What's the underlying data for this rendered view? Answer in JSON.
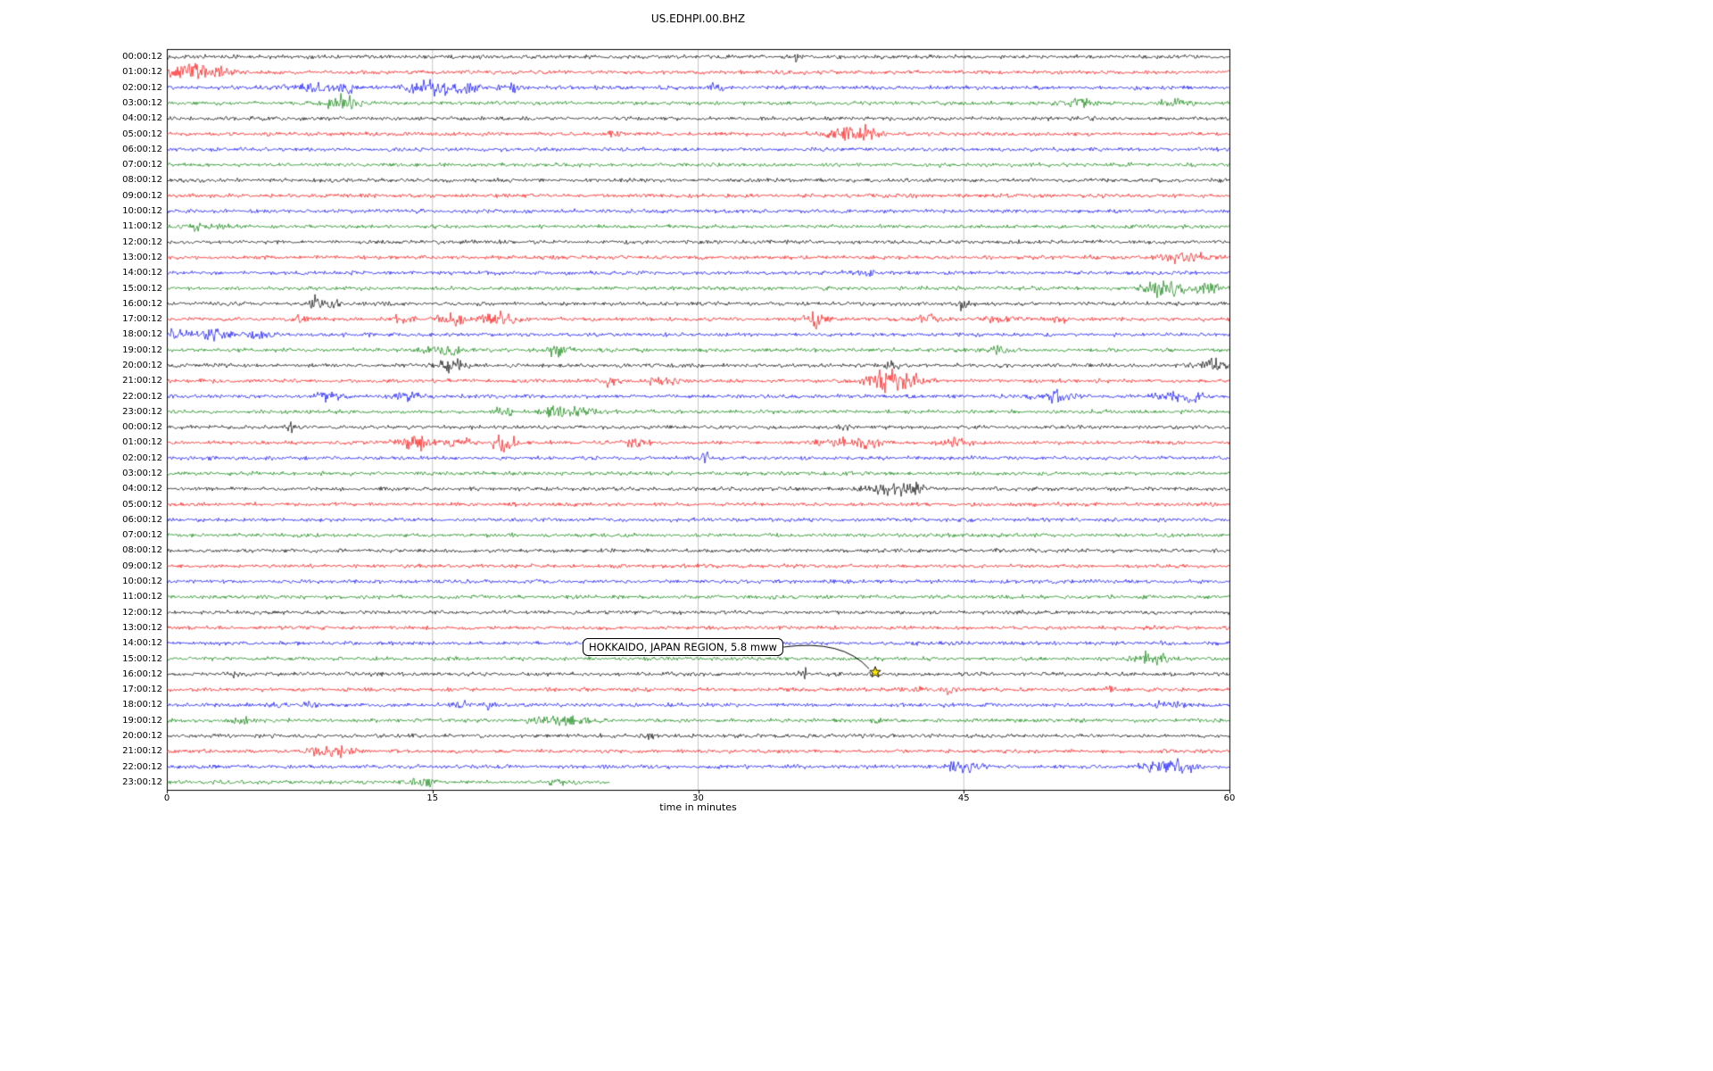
{
  "title": "US.EDHPI.00.BHZ",
  "xlabel": "time in minutes",
  "annotation": {
    "text": "HOKKAIDO, JAPAN REGION, 5.8 mww",
    "row_index": 40,
    "minute": 40,
    "marker": "star",
    "marker_color": "#ffe600"
  },
  "chart_data": {
    "type": "line",
    "title": "US.EDHPI.00.BHZ",
    "xlabel": "time in minutes",
    "xlim": [
      0,
      60
    ],
    "x_ticks": [
      0,
      15,
      30,
      45,
      60
    ],
    "grid": true,
    "trace_colors": [
      "#000000",
      "#ff0000",
      "#0000ff",
      "#008000"
    ],
    "rows": [
      {
        "t": "00:00:12",
        "ev": [
          [
            35.5,
            5,
            0.3
          ]
        ]
      },
      {
        "t": "01:00:12",
        "ev": [
          [
            1.2,
            6,
            1.2
          ],
          [
            2.8,
            6,
            0.8
          ]
        ]
      },
      {
        "t": "02:00:12",
        "ev": [
          [
            8,
            4,
            1.5
          ],
          [
            10.2,
            4,
            0.8
          ],
          [
            15.2,
            6,
            1.5
          ],
          [
            17.2,
            4,
            0.8
          ],
          [
            19.5,
            3,
            0.8
          ],
          [
            31,
            7,
            0.3
          ]
        ]
      },
      {
        "t": "03:00:12",
        "ev": [
          [
            9.8,
            7,
            0.9
          ],
          [
            51.5,
            3,
            1
          ],
          [
            57,
            3,
            1
          ]
        ]
      },
      {
        "t": "04:00:12",
        "ev": []
      },
      {
        "t": "05:00:12",
        "ev": [
          [
            25.2,
            3,
            0.5
          ],
          [
            38.7,
            8,
            1.2
          ]
        ]
      },
      {
        "t": "06:00:12",
        "ev": []
      },
      {
        "t": "07:00:12",
        "ev": []
      },
      {
        "t": "08:00:12",
        "ev": []
      },
      {
        "t": "09:00:12",
        "ev": []
      },
      {
        "t": "10:00:12",
        "ev": []
      },
      {
        "t": "11:00:12",
        "ev": [
          [
            2,
            3,
            1
          ]
        ]
      },
      {
        "t": "12:00:12",
        "ev": []
      },
      {
        "t": "13:00:12",
        "ev": [
          [
            57.5,
            6,
            1.2
          ]
        ]
      },
      {
        "t": "14:00:12",
        "ev": [
          [
            39.2,
            3,
            0.8
          ]
        ]
      },
      {
        "t": "15:00:12",
        "ev": [
          [
            56.5,
            9,
            1.2
          ],
          [
            58.8,
            5,
            0.8
          ]
        ]
      },
      {
        "t": "16:00:12",
        "ev": [
          [
            8.4,
            6,
            0.4
          ],
          [
            9.5,
            4,
            0.4
          ],
          [
            45,
            6,
            0.4
          ]
        ]
      },
      {
        "t": "17:00:12",
        "ev": [
          [
            7.5,
            3,
            0.5
          ],
          [
            13.4,
            4,
            0.7
          ],
          [
            16,
            5,
            0.9
          ],
          [
            18.6,
            5,
            1.2
          ],
          [
            36.6,
            6,
            0.7
          ],
          [
            43,
            4,
            1.2
          ],
          [
            47,
            3,
            0.9
          ],
          [
            50.2,
            3,
            0.7
          ]
        ]
      },
      {
        "t": "18:00:12",
        "ev": [
          [
            1,
            4,
            1.2
          ],
          [
            3,
            4,
            0.9
          ],
          [
            5.2,
            3,
            0.9
          ]
        ]
      },
      {
        "t": "19:00:12",
        "ev": [
          [
            15.6,
            5,
            0.9
          ],
          [
            22,
            5,
            0.7
          ],
          [
            47,
            3,
            0.5
          ]
        ]
      },
      {
        "t": "20:00:12",
        "ev": [
          [
            16,
            5,
            0.9
          ],
          [
            41,
            4,
            0.7
          ],
          [
            59,
            5,
            0.9
          ]
        ]
      },
      {
        "t": "21:00:12",
        "ev": [
          [
            25,
            4,
            0.5
          ],
          [
            28,
            5,
            0.7
          ],
          [
            40.6,
            9,
            1.2
          ],
          [
            42.2,
            6,
            0.9
          ]
        ]
      },
      {
        "t": "22:00:12",
        "ev": [
          [
            9,
            4,
            0.7
          ],
          [
            13.5,
            4,
            0.7
          ],
          [
            50,
            5,
            1
          ],
          [
            56.5,
            6,
            0.7
          ],
          [
            57.9,
            7,
            0.5
          ]
        ]
      },
      {
        "t": "23:00:12",
        "ev": [
          [
            19,
            8,
            0.4
          ],
          [
            22.6,
            4,
            1.8
          ]
        ]
      },
      {
        "t": "00:00:12",
        "ev": [
          [
            7,
            4,
            0.3
          ],
          [
            38.2,
            3,
            0.3
          ]
        ]
      },
      {
        "t": "01:00:12",
        "ev": [
          [
            14.2,
            6,
            1
          ],
          [
            16.4,
            4,
            0.7
          ],
          [
            19,
            11,
            0.7
          ],
          [
            26.4,
            7,
            0.5
          ],
          [
            37.6,
            5,
            0.9
          ],
          [
            39.4,
            5,
            0.9
          ],
          [
            44.6,
            4,
            0.9
          ]
        ]
      },
      {
        "t": "02:00:12",
        "ev": [
          [
            30.4,
            5,
            0.3
          ]
        ]
      },
      {
        "t": "03:00:12",
        "ev": []
      },
      {
        "t": "04:00:12",
        "ev": [
          [
            40.4,
            5,
            0.9
          ],
          [
            42.1,
            7,
            0.7
          ]
        ]
      },
      {
        "t": "05:00:12",
        "ev": []
      },
      {
        "t": "06:00:12",
        "ev": []
      },
      {
        "t": "07:00:12",
        "ev": []
      },
      {
        "t": "08:00:12",
        "ev": []
      },
      {
        "t": "09:00:12",
        "ev": []
      },
      {
        "t": "10:00:12",
        "ev": []
      },
      {
        "t": "11:00:12",
        "ev": []
      },
      {
        "t": "12:00:12",
        "ev": []
      },
      {
        "t": "13:00:12",
        "ev": []
      },
      {
        "t": "14:00:12",
        "ev": []
      },
      {
        "t": "15:00:12",
        "ev": [
          [
            55.6,
            7,
            0.9
          ]
        ]
      },
      {
        "t": "16:00:12",
        "ev": [
          [
            4,
            3,
            0.4
          ],
          [
            36,
            4,
            0.25
          ],
          [
            40,
            3,
            0.25
          ]
        ]
      },
      {
        "t": "17:00:12",
        "ev": [
          [
            42.2,
            3,
            0.4
          ],
          [
            44.2,
            3,
            0.35
          ],
          [
            53.2,
            3,
            0.35
          ]
        ]
      },
      {
        "t": "18:00:12",
        "ev": [
          [
            6.2,
            4,
            0.4
          ],
          [
            8.2,
            3,
            0.4
          ],
          [
            16.6,
            4,
            0.4
          ],
          [
            18.2,
            3,
            0.4
          ],
          [
            56.6,
            4,
            0.7
          ]
        ]
      },
      {
        "t": "19:00:12",
        "ev": [
          [
            4.2,
            5,
            0.4
          ],
          [
            21.6,
            4,
            1.2
          ],
          [
            23.2,
            4,
            0.8
          ],
          [
            40.2,
            4,
            0.3
          ]
        ]
      },
      {
        "t": "20:00:12",
        "ev": [
          [
            27.2,
            4,
            0.4
          ]
        ]
      },
      {
        "t": "21:00:12",
        "ev": [
          [
            9,
            5,
            0.9
          ],
          [
            10.2,
            3,
            0.7
          ]
        ]
      },
      {
        "t": "22:00:12",
        "ev": [
          [
            45,
            5,
            0.9
          ],
          [
            56.2,
            6,
            1
          ],
          [
            57.4,
            5,
            0.7
          ]
        ]
      },
      {
        "t": "23:00:12",
        "end": 25,
        "ev": [
          [
            14.6,
            4,
            0.9
          ],
          [
            22,
            3,
            0.7
          ]
        ]
      }
    ]
  }
}
